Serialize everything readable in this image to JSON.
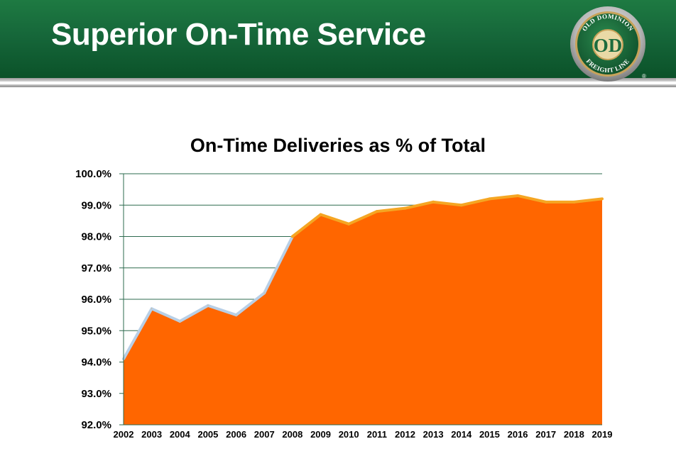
{
  "slide": {
    "title": "Superior On-Time Service",
    "logo_text_top": "OLD DOMINION",
    "logo_text_bottom": "FREIGHT LINE",
    "logo_monogram": "OD",
    "logo_registered": "®"
  },
  "colors": {
    "header_green": "#16673a",
    "area_fill": "#ff6600",
    "area_edge": "#f5a623",
    "early_edge": "#b8cfe6",
    "grid": "#2e6b4f",
    "axis": "#2e6b4f",
    "logo_gold": "#c8a35a",
    "logo_green": "#1d6b3d"
  },
  "chart_data": {
    "type": "area",
    "title": "On-Time Deliveries as % of Total",
    "xlabel": "",
    "ylabel": "",
    "x": [
      "2002",
      "2003",
      "2004",
      "2005",
      "2006",
      "2007",
      "2008",
      "2009",
      "2010",
      "2011",
      "2012",
      "2013",
      "2014",
      "2015",
      "2016",
      "2017",
      "2018",
      "2019"
    ],
    "series": [
      {
        "values": [
          94.1,
          95.7,
          95.3,
          95.8,
          95.5,
          96.2,
          98.0,
          98.7,
          98.4,
          98.8,
          98.9,
          99.1,
          99.0,
          99.2,
          99.3,
          99.1,
          99.1,
          99.2
        ]
      }
    ],
    "ylim": [
      92.0,
      100.0
    ],
    "yticks": [
      92.0,
      93.0,
      94.0,
      95.0,
      96.0,
      97.0,
      98.0,
      99.0,
      100.0
    ],
    "ytick_labels": [
      "92.0%",
      "93.0%",
      "94.0%",
      "95.0%",
      "96.0%",
      "97.0%",
      "98.0%",
      "99.0%",
      "100.0%"
    ],
    "grid": "horizontal",
    "legend": "none"
  }
}
